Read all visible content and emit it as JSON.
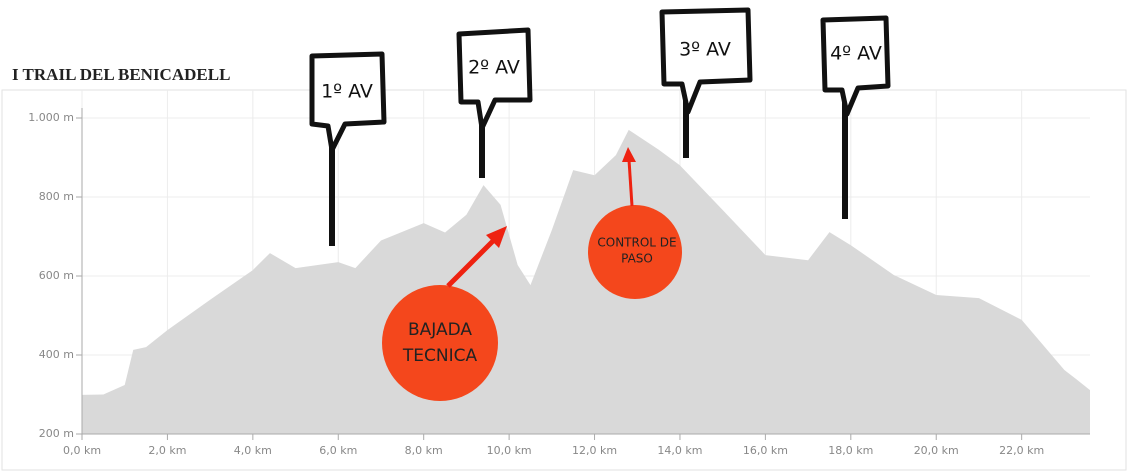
{
  "chart_data": {
    "type": "area",
    "title": "I TRAIL DEL BENICADELL",
    "color": "#d9d9d9",
    "x": [
      0,
      0.5,
      1.0,
      1.2,
      1.5,
      2.0,
      3.0,
      4.0,
      4.4,
      5.0,
      6.0,
      6.4,
      7.0,
      8.0,
      8.5,
      9.0,
      9.4,
      9.8,
      10.2,
      10.5,
      11.0,
      11.5,
      12.0,
      12.5,
      12.8,
      13.5,
      14.0,
      15.0,
      16.0,
      17.0,
      17.5,
      18.0,
      19.0,
      20.0,
      21.0,
      22.0,
      23.0,
      23.3,
      23.6
    ],
    "values": [
      299,
      300,
      324,
      413,
      420,
      463,
      540,
      615,
      658,
      620,
      635,
      620,
      690,
      734,
      710,
      755,
      830,
      780,
      628,
      577,
      716,
      868,
      855,
      906,
      970,
      920,
      880,
      767,
      653,
      640,
      711,
      678,
      603,
      552,
      544,
      489,
      362,
      337,
      311
    ],
    "xlim": [
      0,
      23.6
    ],
    "ylim": [
      200,
      1000
    ],
    "xticks": [
      {
        "value": 0,
        "label": "0,0 km"
      },
      {
        "value": 2,
        "label": "2,0 km"
      },
      {
        "value": 4,
        "label": "4,0 km"
      },
      {
        "value": 6,
        "label": "6,0 km"
      },
      {
        "value": 8,
        "label": "8,0 km"
      },
      {
        "value": 10,
        "label": "10,0 km"
      },
      {
        "value": 12,
        "label": "12,0 km"
      },
      {
        "value": 14,
        "label": "14,0 km"
      },
      {
        "value": 16,
        "label": "16,0 km"
      },
      {
        "value": 18,
        "label": "18,0 km"
      },
      {
        "value": 20,
        "label": "20,0 km"
      },
      {
        "value": 22,
        "label": "22,0 km"
      }
    ],
    "yticks": [
      {
        "value": 200,
        "label": "200 m"
      },
      {
        "value": 400,
        "label": "400 m"
      },
      {
        "value": 600,
        "label": "600 m"
      },
      {
        "value": 800,
        "label": "800 m"
      },
      {
        "value": 1000,
        "label": "1.000 m"
      }
    ],
    "grid": true,
    "signs": [
      "1º AV",
      "2º AV",
      "3º AV",
      "4º AV"
    ],
    "callouts": [
      [
        "BAJADA",
        "TECNICA"
      ],
      [
        "CONTROL DE",
        "PASO"
      ]
    ]
  }
}
